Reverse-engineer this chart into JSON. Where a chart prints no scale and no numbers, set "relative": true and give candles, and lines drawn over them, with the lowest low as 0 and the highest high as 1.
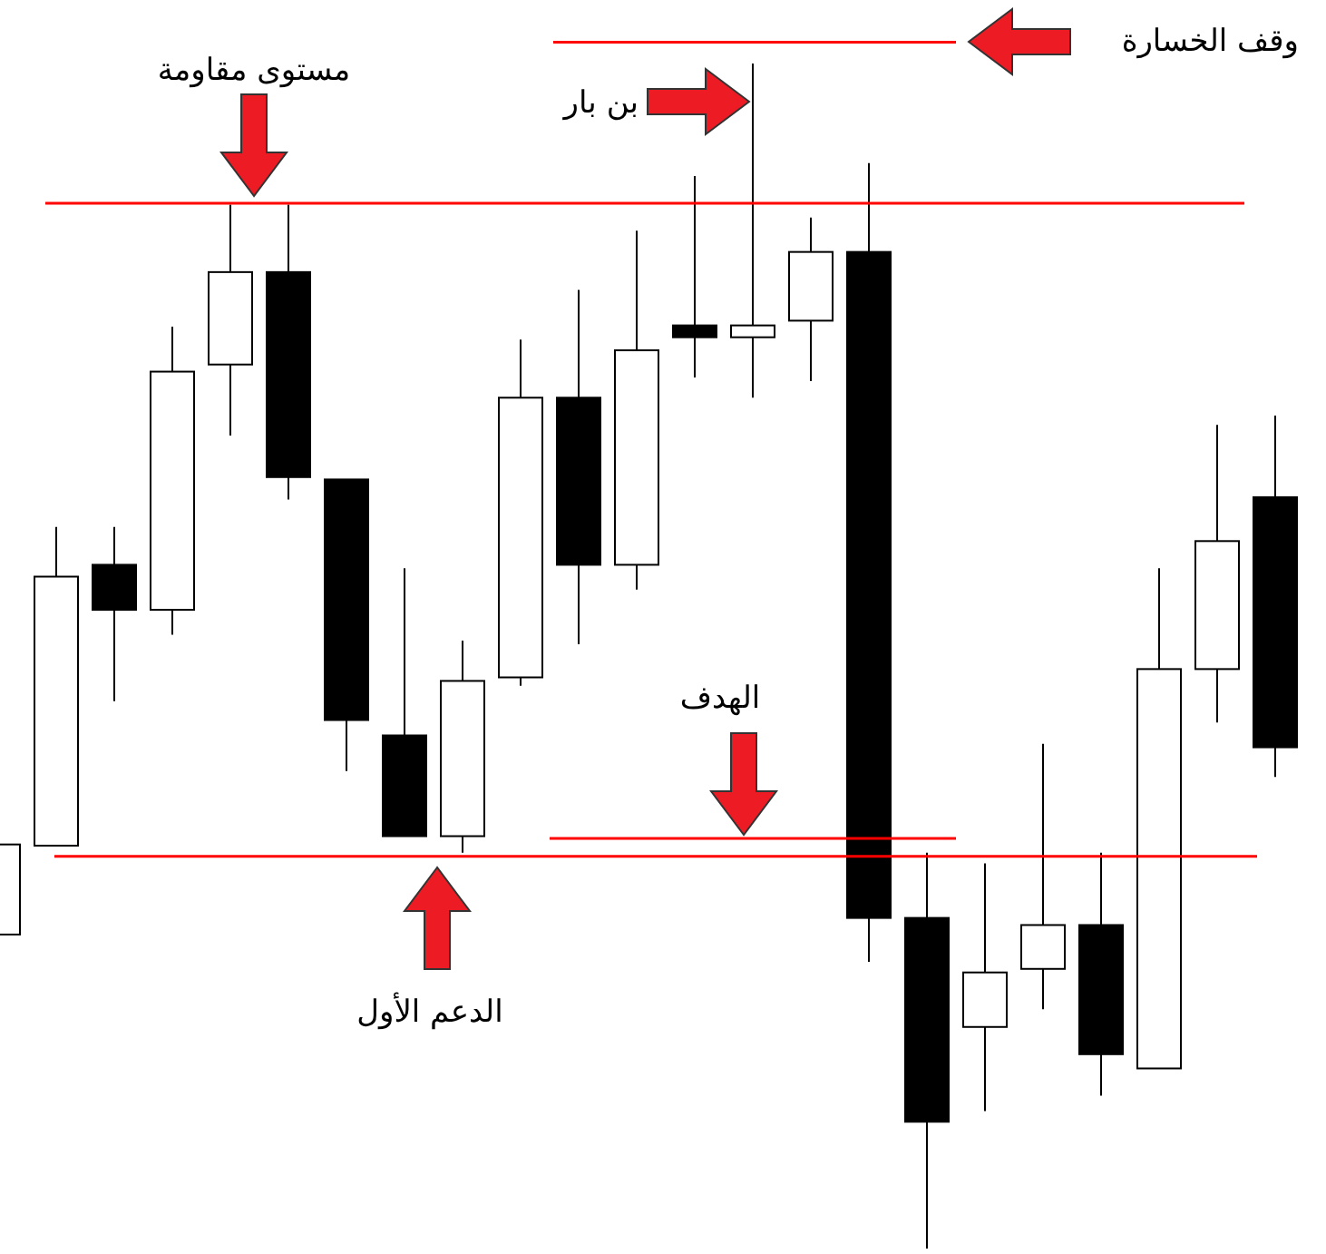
{
  "chart_data": {
    "type": "candlestick",
    "relative": true,
    "categories": [
      null,
      null,
      null,
      null,
      null,
      null,
      null,
      null,
      null,
      null,
      null,
      null,
      null,
      null,
      null,
      null,
      null,
      null,
      null,
      null,
      null,
      null,
      null
    ],
    "ohlc": [
      [
        0.265,
        0.341,
        0.265,
        0.341
      ],
      [
        0.34,
        0.609,
        0.34,
        0.567
      ],
      [
        0.577,
        0.609,
        0.462,
        0.539
      ],
      [
        0.539,
        0.778,
        0.518,
        0.74
      ],
      [
        0.746,
        0.881,
        0.686,
        0.824
      ],
      [
        0.824,
        0.881,
        0.632,
        0.651
      ],
      [
        0.649,
        0.649,
        0.403,
        0.446
      ],
      [
        0.433,
        0.574,
        0.348,
        0.348
      ],
      [
        0.348,
        0.513,
        0.334,
        0.479
      ],
      [
        0.482,
        0.767,
        0.475,
        0.718
      ],
      [
        0.718,
        0.809,
        0.51,
        0.577
      ],
      [
        0.577,
        0.859,
        0.556,
        0.758
      ],
      [
        0.779,
        0.905,
        0.735,
        0.769
      ],
      [
        0.769,
        1,
        0.718,
        0.779
      ],
      [
        0.783,
        0.87,
        0.732,
        0.841
      ],
      [
        0.841,
        0.916,
        0.242,
        0.279
      ],
      [
        0.279,
        0.334,
        0,
        0.107
      ],
      [
        0.187,
        0.325,
        0.116,
        0.233
      ],
      [
        0.236,
        0.426,
        0.202,
        0.273
      ],
      [
        0.273,
        0.334,
        0.129,
        0.164
      ],
      [
        0.152,
        0.574,
        0.152,
        0.489
      ],
      [
        0.489,
        0.695,
        0.444,
        0.597
      ],
      [
        0.634,
        0.703,
        0.398,
        0.423
      ]
    ],
    "ref_lines": [
      {
        "axis": "y",
        "value": 0.882,
        "color": "#ff0000"
      },
      {
        "axis": "y",
        "value": 0.331,
        "color": "#ff0000"
      },
      {
        "axis": "y",
        "value": 0.346,
        "color": "#ff0000"
      },
      {
        "axis": "y",
        "value": 1.018,
        "color": "#ff0000"
      }
    ],
    "annotations": [
      "مستوى مقاومة",
      "الدعم الأول",
      "الهدف",
      "وقف الخسارة",
      "بن بار"
    ]
  }
}
